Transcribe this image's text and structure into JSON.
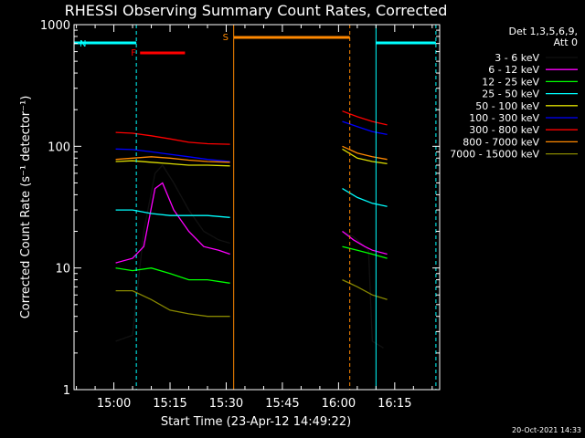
{
  "chart_data": {
    "type": "line",
    "title": "RHESSI Observing Summary Count Rates, Corrected",
    "xlabel": "Start Time (23-Apr-12 14:49:22)",
    "ylabel": "Corrected Count Rate (s⁻¹ detector⁻¹)",
    "yscale": "log",
    "ylim": [
      1,
      1000
    ],
    "xlim": [
      "14:49:22",
      "16:27:00"
    ],
    "xticks": [
      "15:00",
      "15:15",
      "15:30",
      "15:45",
      "16:00",
      "16:15"
    ],
    "yticks": [
      "1",
      "10",
      "100",
      "1000"
    ],
    "legend_title": [
      "Det 1,3,5,6,9,",
      "Att 0"
    ],
    "legend_position": "right",
    "footer": "20-Oct-2021 14:33",
    "series": [
      {
        "name": "3 - 6 keV",
        "color": "#000000",
        "points": [
          [
            "15:00:30",
            2.5
          ],
          [
            "15:05",
            2.8
          ],
          [
            "15:08",
            20
          ],
          [
            "15:11",
            60
          ],
          [
            "15:13",
            70
          ],
          [
            "15:16",
            50
          ],
          [
            "15:20",
            30
          ],
          [
            "15:24",
            20
          ],
          [
            "15:28",
            17
          ],
          [
            "15:31",
            16
          ],
          [
            "16:01",
            20
          ],
          [
            "16:04",
            18
          ],
          [
            "16:07",
            15
          ],
          [
            "16:08",
            14
          ],
          [
            "16:09",
            2.5
          ],
          [
            "16:12",
            2.2
          ]
        ]
      },
      {
        "name": "6 - 12 keV",
        "color": "#ff00ff",
        "points": [
          [
            "15:00:30",
            11
          ],
          [
            "15:05",
            12
          ],
          [
            "15:08",
            15
          ],
          [
            "15:11",
            45
          ],
          [
            "15:13",
            50
          ],
          [
            "15:16",
            30
          ],
          [
            "15:20",
            20
          ],
          [
            "15:24",
            15
          ],
          [
            "15:28",
            14
          ],
          [
            "15:31",
            13
          ],
          [
            "16:01",
            20
          ],
          [
            "16:04",
            17
          ],
          [
            "16:07",
            15
          ],
          [
            "16:09",
            14
          ],
          [
            "16:13",
            13
          ]
        ]
      },
      {
        "name": "12 - 25 keV",
        "color": "#00ff00",
        "points": [
          [
            "15:00:30",
            10
          ],
          [
            "15:05",
            9.5
          ],
          [
            "15:10",
            10
          ],
          [
            "15:15",
            9
          ],
          [
            "15:20",
            8
          ],
          [
            "15:25",
            8
          ],
          [
            "15:31",
            7.5
          ],
          [
            "16:01",
            15
          ],
          [
            "16:05",
            14
          ],
          [
            "16:09",
            13
          ],
          [
            "16:13",
            12
          ]
        ]
      },
      {
        "name": "25 - 50 keV",
        "color": "#00ffff",
        "points": [
          [
            "15:00:30",
            30
          ],
          [
            "15:05",
            30
          ],
          [
            "15:10",
            28
          ],
          [
            "15:15",
            27
          ],
          [
            "15:20",
            27
          ],
          [
            "15:25",
            27
          ],
          [
            "15:31",
            26
          ],
          [
            "16:01",
            45
          ],
          [
            "16:05",
            38
          ],
          [
            "16:09",
            34
          ],
          [
            "16:13",
            32
          ]
        ]
      },
      {
        "name": "50 - 100 keV",
        "color": "#dddd00",
        "points": [
          [
            "15:00:30",
            75
          ],
          [
            "15:05",
            76
          ],
          [
            "15:10",
            74
          ],
          [
            "15:15",
            72
          ],
          [
            "15:20",
            70
          ],
          [
            "15:25",
            70
          ],
          [
            "15:31",
            69
          ],
          [
            "16:01",
            95
          ],
          [
            "16:05",
            80
          ],
          [
            "16:09",
            75
          ],
          [
            "16:13",
            72
          ]
        ]
      },
      {
        "name": "100 - 300 keV",
        "color": "#0000ff",
        "points": [
          [
            "15:00:30",
            95
          ],
          [
            "15:05",
            94
          ],
          [
            "15:10",
            90
          ],
          [
            "15:15",
            86
          ],
          [
            "15:20",
            82
          ],
          [
            "15:25",
            78
          ],
          [
            "15:31",
            75
          ],
          [
            "16:01",
            160
          ],
          [
            "16:05",
            145
          ],
          [
            "16:09",
            132
          ],
          [
            "16:13",
            125
          ]
        ]
      },
      {
        "name": "300 - 800 keV",
        "color": "#ff0000",
        "points": [
          [
            "15:00:30",
            130
          ],
          [
            "15:05",
            128
          ],
          [
            "15:10",
            122
          ],
          [
            "15:15",
            115
          ],
          [
            "15:20",
            108
          ],
          [
            "15:25",
            105
          ],
          [
            "15:31",
            104
          ],
          [
            "16:01",
            195
          ],
          [
            "16:05",
            175
          ],
          [
            "16:09",
            160
          ],
          [
            "16:13",
            150
          ]
        ]
      },
      {
        "name": "800 - 7000 keV",
        "color": "#ff8800",
        "points": [
          [
            "15:00:30",
            78
          ],
          [
            "15:05",
            80
          ],
          [
            "15:10",
            82
          ],
          [
            "15:15",
            80
          ],
          [
            "15:20",
            77
          ],
          [
            "15:25",
            75
          ],
          [
            "15:31",
            74
          ],
          [
            "16:01",
            100
          ],
          [
            "16:05",
            88
          ],
          [
            "16:09",
            82
          ],
          [
            "16:13",
            78
          ]
        ]
      },
      {
        "name": "7000 - 15000 keV",
        "color": "#888800",
        "points": [
          [
            "15:00:30",
            6.5
          ],
          [
            "15:05",
            6.5
          ],
          [
            "15:10",
            5.5
          ],
          [
            "15:15",
            4.5
          ],
          [
            "15:20",
            4.2
          ],
          [
            "15:25",
            4.0
          ],
          [
            "15:31",
            4.0
          ],
          [
            "16:01",
            8
          ],
          [
            "16:05",
            7
          ],
          [
            "16:09",
            6
          ],
          [
            "16:13",
            5.5
          ]
        ]
      }
    ],
    "flags": [
      {
        "label": "N",
        "color": "#00ffff",
        "segments": [
          [
            "14:49:22",
            "15:06"
          ],
          [
            "16:10",
            "16:26"
          ]
        ]
      },
      {
        "label": "F",
        "color": "#ff0000",
        "segments": [
          [
            "15:07",
            "15:19"
          ]
        ]
      },
      {
        "label": "S",
        "color": "#ff8800",
        "segments": [
          [
            "15:32",
            "16:03"
          ]
        ]
      }
    ],
    "vlines": [
      {
        "time": "14:49:22",
        "color": "#00ffff",
        "style": "solid"
      },
      {
        "time": "15:06",
        "color": "#00ffff",
        "style": "dashed"
      },
      {
        "time": "15:32",
        "color": "#ff8800",
        "style": "solid"
      },
      {
        "time": "16:03",
        "color": "#ff8800",
        "style": "dashed"
      },
      {
        "time": "16:10",
        "color": "#00ffff",
        "style": "solid"
      },
      {
        "time": "16:26",
        "color": "#00ffff",
        "style": "dashed"
      }
    ]
  }
}
